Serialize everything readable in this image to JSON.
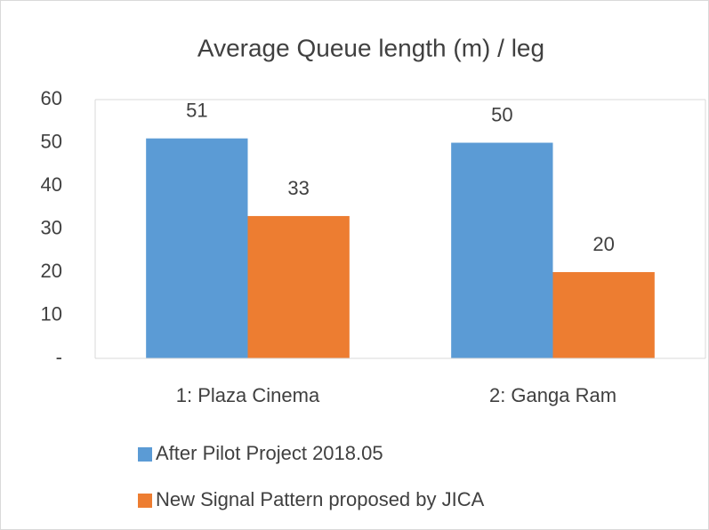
{
  "chart_data": {
    "type": "bar",
    "title": "Average Queue length (m) / leg",
    "categories": [
      "1: Plaza Cinema",
      "2: Ganga Ram"
    ],
    "series": [
      {
        "name": "After Pilot Project 2018.05",
        "color": "#5b9bd5",
        "values": [
          51,
          50
        ]
      },
      {
        "name": "New Signal Pattern proposed by JICA",
        "color": "#ed7d31",
        "values": [
          33,
          20
        ]
      }
    ],
    "ylim": [
      0,
      60
    ],
    "yticks": [
      {
        "value": 0,
        "label": "-"
      },
      10,
      20,
      30,
      40,
      50,
      60
    ],
    "legend": "bottom"
  }
}
